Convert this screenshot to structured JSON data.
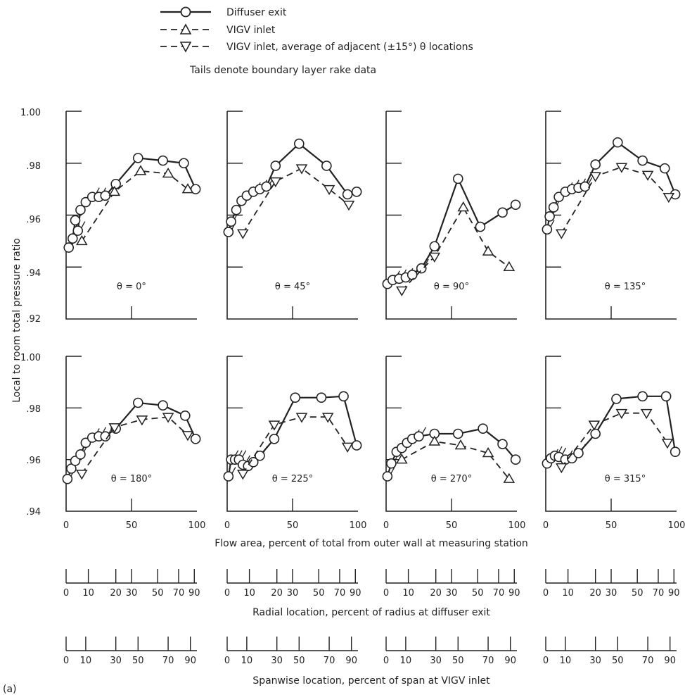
{
  "legend": {
    "entries": [
      {
        "label": "Diffuser exit",
        "marker": "circle",
        "line": "solid"
      },
      {
        "label": "VIGV inlet",
        "marker": "triangle-up",
        "line": "dashed"
      },
      {
        "label": "VIGV inlet, average of adjacent (±15°) θ locations",
        "marker": "triangle-down",
        "line": "dashed"
      }
    ],
    "note": "Tails denote boundary layer rake data"
  },
  "labels": {
    "ylabel": "Local to room total pressure ratio",
    "xlabel": "Flow area, percent of total from outer wall at measuring station",
    "radial_label": "Radial location, percent of radius at diffuser exit",
    "span_label": "Spanwise location, percent of span at VIGV inlet",
    "figure_tag": "(a)"
  },
  "axes": {
    "top_row_yticks": [
      "1.00",
      ".98",
      ".96",
      ".94",
      ".92"
    ],
    "bottom_row_yticks": [
      "1.00",
      ".98",
      ".96",
      ".94"
    ],
    "xticks": [
      "0",
      "50",
      "100"
    ],
    "radial_ticks": [
      "0",
      "10",
      "20",
      "30",
      "50",
      "70",
      "90"
    ],
    "span_ticks": [
      "0",
      "10",
      "30",
      "50",
      "70",
      "90"
    ]
  },
  "chart_data": [
    {
      "type": "line",
      "title": "θ = 0°",
      "xlim": [
        0,
        100
      ],
      "ylim": [
        0.92,
        1.0
      ],
      "series": [
        {
          "name": "Diffuser exit",
          "x": [
            2,
            5,
            7,
            9,
            11,
            15,
            20,
            25,
            30,
            38,
            55,
            74,
            90,
            99
          ],
          "y": [
            0.9475,
            0.951,
            0.958,
            0.954,
            0.962,
            0.965,
            0.967,
            0.967,
            0.9675,
            0.972,
            0.982,
            0.981,
            0.98,
            0.97
          ]
        },
        {
          "name": "VIGV inlet",
          "x": [
            12,
            37,
            57,
            78,
            93
          ],
          "y": [
            0.95,
            0.969,
            0.977,
            0.976,
            0.97
          ]
        }
      ]
    },
    {
      "type": "line",
      "title": "θ = 45°",
      "xlim": [
        0,
        100
      ],
      "ylim": [
        0.92,
        1.0
      ],
      "series": [
        {
          "name": "Diffuser exit",
          "x": [
            1,
            3,
            7,
            11,
            15,
            20,
            25,
            30,
            37,
            55,
            76,
            92,
            99
          ],
          "y": [
            0.9535,
            0.9575,
            0.962,
            0.9655,
            0.9675,
            0.969,
            0.97,
            0.971,
            0.979,
            0.9875,
            0.979,
            0.968,
            0.969
          ]
        },
        {
          "name": "VIGV inlet",
          "x": [
            12,
            37,
            57,
            78,
            93
          ],
          "y": [
            0.953,
            0.973,
            0.978,
            0.97,
            0.964
          ]
        }
      ]
    },
    {
      "type": "line",
      "title": "θ = 90°",
      "xlim": [
        0,
        100
      ],
      "ylim": [
        0.92,
        1.0
      ],
      "series": [
        {
          "name": "Diffuser exit",
          "x": [
            1,
            5,
            10,
            15,
            20,
            27,
            37,
            55,
            72,
            89,
            99
          ],
          "y": [
            0.9335,
            0.935,
            0.9355,
            0.936,
            0.937,
            0.9395,
            0.948,
            0.974,
            0.9555,
            0.961,
            0.964
          ]
        },
        {
          "name": "VIGV inlet",
          "x": [
            12,
            37,
            59,
            78,
            94
          ],
          "y": [
            0.931,
            0.944,
            0.963,
            0.946,
            0.94
          ]
        }
      ]
    },
    {
      "type": "line",
      "title": "θ = 135°",
      "xlim": [
        0,
        100
      ],
      "ylim": [
        0.92,
        1.0
      ],
      "series": [
        {
          "name": "Diffuser exit",
          "x": [
            1,
            3,
            6,
            10,
            15,
            20,
            25,
            30,
            38,
            55,
            74,
            91,
            99
          ],
          "y": [
            0.9545,
            0.9595,
            0.963,
            0.967,
            0.969,
            0.97,
            0.9705,
            0.971,
            0.9795,
            0.988,
            0.981,
            0.978,
            0.968
          ]
        },
        {
          "name": "VIGV inlet",
          "x": [
            12,
            38,
            58,
            78,
            94
          ],
          "y": [
            0.953,
            0.975,
            0.9785,
            0.9755,
            0.967
          ]
        }
      ]
    },
    {
      "type": "line",
      "title": "θ = 180°",
      "xlim": [
        0,
        100
      ],
      "ylim": [
        0.94,
        1.0
      ],
      "series": [
        {
          "name": "Diffuser exit",
          "x": [
            1,
            4,
            7,
            11,
            15,
            20,
            25,
            30,
            38,
            55,
            74,
            91,
            99
          ],
          "y": [
            0.9525,
            0.9565,
            0.9595,
            0.962,
            0.9665,
            0.9685,
            0.969,
            0.969,
            0.972,
            0.982,
            0.981,
            0.977,
            0.968
          ]
        },
        {
          "name": "VIGV inlet",
          "x": [
            12,
            37,
            58,
            78,
            93
          ],
          "y": [
            0.9545,
            0.9725,
            0.9755,
            0.9765,
            0.9695
          ]
        }
      ]
    },
    {
      "type": "line",
      "title": "θ = 225°",
      "xlim": [
        0,
        100
      ],
      "ylim": [
        0.94,
        1.0
      ],
      "series": [
        {
          "name": "Diffuser exit",
          "x": [
            1,
            3,
            6,
            9,
            12,
            16,
            20,
            25,
            36,
            52,
            72,
            89,
            99
          ],
          "y": [
            0.9535,
            0.96,
            0.96,
            0.96,
            0.958,
            0.9575,
            0.959,
            0.9615,
            0.968,
            0.984,
            0.984,
            0.9845,
            0.9655
          ]
        },
        {
          "name": "VIGV inlet",
          "x": [
            12,
            36,
            57,
            77,
            92
          ],
          "y": [
            0.9545,
            0.9735,
            0.9765,
            0.9765,
            0.965
          ]
        }
      ]
    },
    {
      "type": "line",
      "title": "θ = 270°",
      "xlim": [
        0,
        100
      ],
      "ylim": [
        0.94,
        1.0
      ],
      "series": [
        {
          "name": "Diffuser exit",
          "x": [
            1,
            4,
            8,
            12,
            16,
            20,
            25,
            37,
            55,
            74,
            89,
            99
          ],
          "y": [
            0.9535,
            0.9585,
            0.963,
            0.9645,
            0.9665,
            0.968,
            0.969,
            0.97,
            0.97,
            0.972,
            0.966,
            0.96
          ]
        },
        {
          "name": "VIGV inlet",
          "x": [
            12,
            37,
            57,
            78,
            94
          ],
          "y": [
            0.96,
            0.967,
            0.9655,
            0.9625,
            0.9525
          ]
        }
      ]
    },
    {
      "type": "line",
      "title": "θ = 315°",
      "xlim": [
        0,
        100
      ],
      "ylim": [
        0.94,
        1.0
      ],
      "series": [
        {
          "name": "Diffuser exit",
          "x": [
            1,
            4,
            7,
            10,
            15,
            20,
            25,
            38,
            54,
            74,
            92,
            99
          ],
          "y": [
            0.9585,
            0.9605,
            0.9615,
            0.961,
            0.96,
            0.9605,
            0.9625,
            0.97,
            0.9835,
            0.9845,
            0.9845,
            0.963
          ]
        },
        {
          "name": "VIGV inlet",
          "x": [
            12,
            37,
            58,
            77,
            93
          ],
          "y": [
            0.957,
            0.9735,
            0.978,
            0.978,
            0.9665
          ]
        }
      ]
    }
  ]
}
